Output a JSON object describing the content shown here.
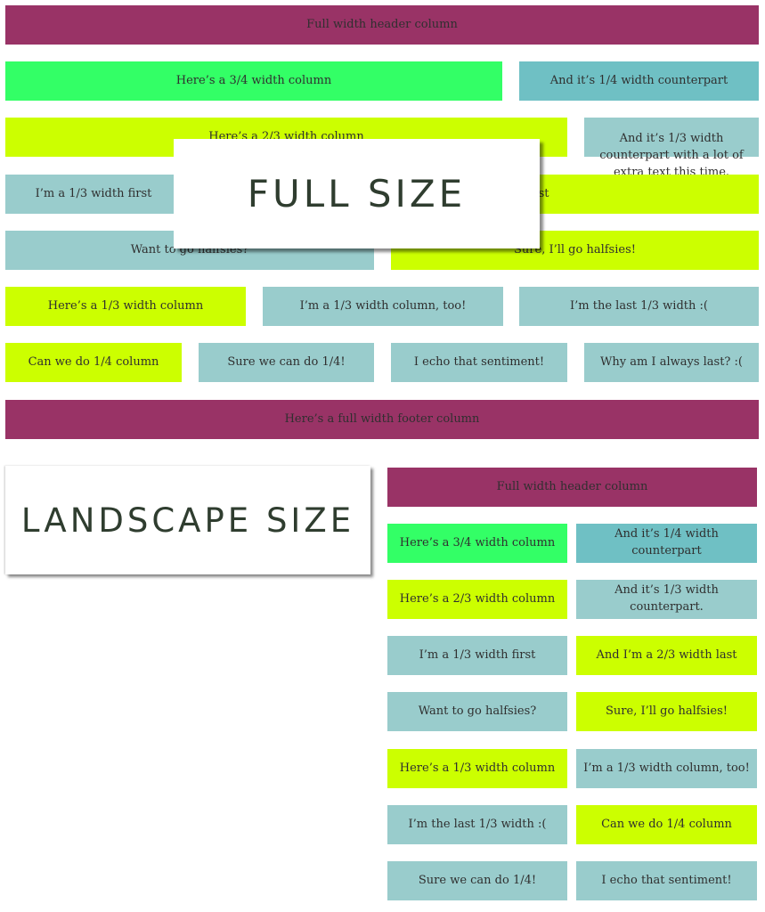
{
  "full": {
    "label": "FULL SIZE",
    "header": "Full width header column",
    "row_3_4": {
      "left": "Here’s a 3/4 width column",
      "right": "And it’s 1/4 width counterpart"
    },
    "row_2_3": {
      "left": "Here’s a 2/3 width column",
      "right": "And it’s 1/3 width counterpart with a lot of extra text this time."
    },
    "row_1_3_first": {
      "left": "I’m a 1/3 width first",
      "right": "And I’m a 2/3 width last"
    },
    "row_halves": {
      "left": "Want to go halfsies?",
      "right": "Sure, I’ll go halfsies!"
    },
    "row_thirds": {
      "first": "Here’s a 1/3 width column",
      "second": "I’m a 1/3 width column, too!",
      "third": "I’m the last 1/3 width :("
    },
    "row_quarters": {
      "first": "Can we do 1/4 column",
      "second": "Sure we can do 1/4!",
      "third": "I echo that sentiment!",
      "fourth": "Why am I always last? :("
    },
    "footer": "Here’s a full width footer column"
  },
  "landscape": {
    "label": "LANDSCAPE SIZE",
    "header": "Full width header column",
    "cells": [
      "Here’s a 3/4 width column",
      "And it’s 1/4 width counterpart",
      "Here’s a 2/3 width column",
      "And it’s 1/3 width counterpart.",
      "I’m a 1/3 width first",
      "And I’m a 2/3 width last",
      "Want to go halfsies?",
      "Sure, I’ll go halfsies!",
      "Here’s a 1/3 width column",
      "I’m a 1/3 width column, too!",
      "I’m the last 1/3 width :(",
      "Can we do 1/4 column",
      "Sure we can do 1/4!",
      "I echo that sentiment!"
    ]
  },
  "colors": {
    "maroon": "#993366",
    "green": "#33ff66",
    "teal": "#6fc0c4",
    "lime": "#ccff00",
    "blue": "#99cccc"
  }
}
